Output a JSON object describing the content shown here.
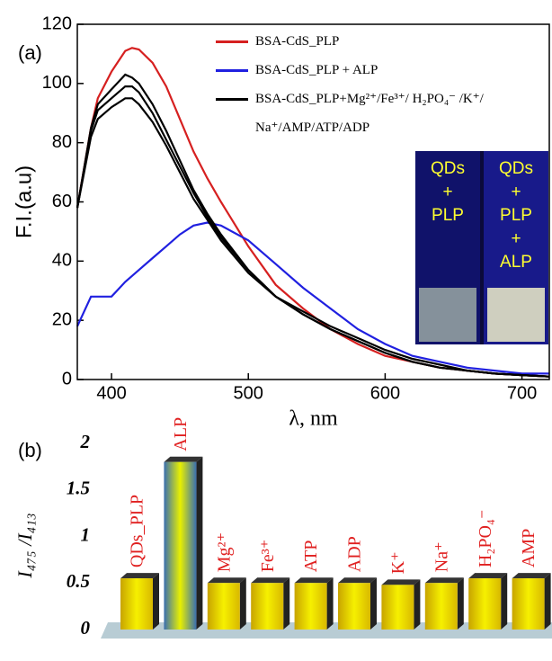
{
  "chart_data": [
    {
      "type": "line",
      "panel": "(a)",
      "y_label": "F.I.(a.u)",
      "x_label": "λ, nm",
      "x": [
        375,
        385,
        390,
        400,
        410,
        415,
        420,
        430,
        440,
        450,
        460,
        470,
        480,
        500,
        520,
        540,
        560,
        580,
        600,
        620,
        640,
        660,
        680,
        700,
        720
      ],
      "series": [
        {
          "name": "BSA-CdS_PLP",
          "color": "#d62020",
          "values": [
            58,
            85,
            95,
            104,
            111,
            112,
            111.5,
            107,
            99,
            88,
            77,
            68,
            60,
            45,
            32,
            24,
            17,
            12,
            8,
            6,
            4,
            3,
            2,
            1.5,
            1
          ]
        },
        {
          "name": "BSA-CdS_PLP + ALP",
          "color": "#2020e0",
          "values": [
            18,
            28,
            28,
            28,
            33,
            35,
            37,
            41,
            45,
            49,
            52,
            53,
            52,
            47,
            39,
            31,
            24,
            17,
            12,
            8,
            6,
            4,
            3,
            2,
            2
          ]
        },
        {
          "name": "BSA-CdS_PLP+Mg²⁺/Fe³⁺/ H₂PO₄⁻ /K⁺/ Na⁺/AMP/ATP/ADP",
          "color": "#000000",
          "values": [
            58,
            85,
            93,
            98,
            103,
            102,
            100,
            93,
            84,
            74,
            64,
            56,
            49,
            37,
            28,
            22,
            17,
            13,
            9,
            6,
            4,
            3,
            2,
            1.5,
            1
          ]
        },
        {
          "color": "#000000",
          "values": [
            58,
            84,
            91,
            95,
            99,
            99,
            97,
            90,
            81,
            72,
            63,
            55,
            48,
            37,
            28,
            22,
            17,
            13,
            9,
            6,
            4,
            3,
            2,
            1.5,
            1
          ]
        },
        {
          "color": "#000000",
          "values": [
            58,
            82,
            88,
            92,
            95,
            95,
            93,
            87,
            79,
            70,
            61,
            54,
            47,
            36,
            28,
            23,
            18,
            14,
            10,
            7,
            5,
            3,
            2,
            1.5,
            1
          ]
        }
      ],
      "xlim": [
        375,
        720
      ],
      "xticks": [
        400,
        500,
        600,
        700
      ],
      "ylim": [
        0,
        120
      ],
      "yticks": [
        0,
        20,
        40,
        60,
        80,
        100,
        120
      ],
      "inset": {
        "labels": [
          [
            "QDs",
            "+",
            "PLP"
          ],
          [
            "QDs",
            "+",
            "PLP",
            "+",
            "ALP"
          ]
        ],
        "color": "#ffff30"
      }
    },
    {
      "type": "bar",
      "panel": "(b)",
      "y_label": "I₄₇₅ /I₄₁₃",
      "categories": [
        "QDs_PLP",
        "ALP",
        "Mg²⁺",
        "Fe³⁺",
        "ATP",
        "ADP",
        "K⁺",
        "Na⁺",
        "H₂PO₄⁻",
        "AMP"
      ],
      "values": [
        0.55,
        1.8,
        0.5,
        0.5,
        0.5,
        0.5,
        0.48,
        0.5,
        0.55,
        0.55
      ],
      "label_color": "#e02020",
      "ylim": [
        0,
        2
      ],
      "yticks": [
        0,
        0.5,
        1,
        1.5,
        2
      ]
    }
  ]
}
